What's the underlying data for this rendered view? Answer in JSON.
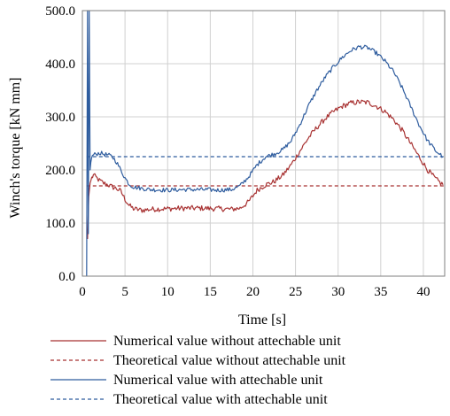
{
  "chart_data": {
    "type": "line",
    "xlabel": "Time [s]",
    "ylabel": "Winch's torque [kN mm]",
    "xlim": [
      0,
      42.5
    ],
    "ylim": [
      0,
      500
    ],
    "x_ticks": [
      "0",
      "5",
      "10",
      "15",
      "20",
      "25",
      "30",
      "35",
      "40"
    ],
    "y_ticks": [
      "0.0",
      "100.0",
      "200.0",
      "300.0",
      "400.0",
      "500.0"
    ],
    "grid": true,
    "legend_position": "bottom",
    "series": [
      {
        "name": "Numerical value without attechable unit",
        "style": "solid",
        "color": "#A83232",
        "noise": 5,
        "x": [
          0.6,
          0.75,
          0.9,
          1.1,
          1.3,
          1.6,
          2.0,
          2.5,
          3.0,
          3.5,
          4.0,
          4.5,
          5.0,
          5.5,
          6.0,
          7.0,
          8.0,
          10.0,
          12.0,
          14.0,
          16.0,
          17.5,
          18.5,
          19.5,
          20.5,
          21.5,
          22.5,
          23.5,
          24.5,
          25.5,
          26.5,
          27.5,
          28.5,
          29.5,
          30.5,
          31.5,
          32.5,
          33.5,
          34.5,
          35.5,
          36.5,
          37.5,
          38.5,
          39.5,
          40.5,
          41.5,
          42.3
        ],
        "y": [
          70,
          150,
          175,
          185,
          190,
          186,
          180,
          175,
          172,
          168,
          165,
          160,
          145,
          133,
          127,
          124,
          126,
          127,
          128,
          128,
          127,
          126,
          128,
          140,
          162,
          172,
          178,
          190,
          210,
          235,
          260,
          280,
          297,
          310,
          320,
          326,
          328,
          327,
          320,
          310,
          295,
          275,
          250,
          225,
          200,
          182,
          172
        ]
      },
      {
        "name": "Theoretical value without attechable unit",
        "style": "dashed",
        "color": "#A83232",
        "x": [
          0.5,
          42.5
        ],
        "y": [
          170,
          170
        ]
      },
      {
        "name": "Numerical value with attechable unit",
        "style": "solid",
        "color": "#2E5C9E",
        "noise": 4,
        "x": [
          0.5,
          0.6,
          0.7,
          0.8,
          0.9,
          1.0,
          1.1,
          1.3,
          1.6,
          2.0,
          2.5,
          3.0,
          3.5,
          4.0,
          4.5,
          5.0,
          5.5,
          6.0,
          7.0,
          8.0,
          10.0,
          12.0,
          14.0,
          16.0,
          17.5,
          18.5,
          19.5,
          20.5,
          21.5,
          22.5,
          23.5,
          24.5,
          25.5,
          26.5,
          27.5,
          28.5,
          29.5,
          30.5,
          31.5,
          32.5,
          33.5,
          34.5,
          35.5,
          36.5,
          37.5,
          38.5,
          39.5,
          40.5,
          41.5,
          42.3
        ],
        "y": [
          0,
          500,
          80,
          500,
          200,
          215,
          225,
          228,
          230,
          232,
          230,
          228,
          225,
          215,
          200,
          185,
          173,
          168,
          165,
          163,
          162,
          163,
          163,
          162,
          163,
          170,
          187,
          210,
          225,
          230,
          238,
          255,
          285,
          320,
          350,
          375,
          395,
          412,
          425,
          432,
          430,
          420,
          405,
          385,
          355,
          320,
          285,
          255,
          235,
          225
        ]
      },
      {
        "name": "Theoretical value with attechable unit",
        "style": "dashed",
        "color": "#2E5C9E",
        "x": [
          0.5,
          42.5
        ],
        "y": [
          225,
          225
        ]
      }
    ]
  }
}
